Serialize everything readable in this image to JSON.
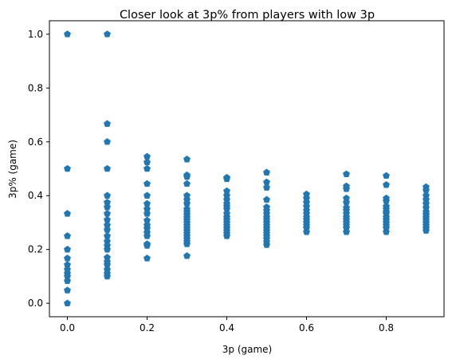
{
  "chart_data": {
    "type": "scatter",
    "title": "Closer look at 3p% from players with low 3p",
    "xlabel": "3p (game)",
    "ylabel": "3p% (game)",
    "xlim": [
      -0.045,
      0.945
    ],
    "ylim": [
      -0.05,
      1.05
    ],
    "x_ticks": [
      "0.0",
      "0.2",
      "0.4",
      "0.6",
      "0.8"
    ],
    "y_ticks": [
      "0.0",
      "0.2",
      "0.4",
      "0.6",
      "0.8",
      "1.0"
    ],
    "marker": "pentagon",
    "color": "#1f77b4",
    "grid": false,
    "series": [
      {
        "points": [
          [
            0.0,
            1.0
          ],
          [
            0.0,
            0.5
          ],
          [
            0.0,
            0.333
          ],
          [
            0.0,
            0.25
          ],
          [
            0.0,
            0.2
          ],
          [
            0.0,
            0.167
          ],
          [
            0.0,
            0.143
          ],
          [
            0.0,
            0.125
          ],
          [
            0.0,
            0.111
          ],
          [
            0.0,
            0.1
          ],
          [
            0.0,
            0.083
          ],
          [
            0.0,
            0.048
          ],
          [
            0.0,
            0.0
          ],
          [
            0.1,
            1.0
          ],
          [
            0.1,
            0.667
          ],
          [
            0.1,
            0.6
          ],
          [
            0.1,
            0.5
          ],
          [
            0.1,
            0.4
          ],
          [
            0.1,
            0.375
          ],
          [
            0.1,
            0.357
          ],
          [
            0.1,
            0.333
          ],
          [
            0.1,
            0.31
          ],
          [
            0.1,
            0.29
          ],
          [
            0.1,
            0.273
          ],
          [
            0.1,
            0.25
          ],
          [
            0.1,
            0.23
          ],
          [
            0.1,
            0.214
          ],
          [
            0.1,
            0.2
          ],
          [
            0.1,
            0.17
          ],
          [
            0.1,
            0.154
          ],
          [
            0.1,
            0.143
          ],
          [
            0.1,
            0.125
          ],
          [
            0.1,
            0.111
          ],
          [
            0.1,
            0.1
          ],
          [
            0.2,
            0.545
          ],
          [
            0.2,
            0.524
          ],
          [
            0.2,
            0.5
          ],
          [
            0.2,
            0.444
          ],
          [
            0.2,
            0.4
          ],
          [
            0.2,
            0.37
          ],
          [
            0.2,
            0.35
          ],
          [
            0.2,
            0.333
          ],
          [
            0.2,
            0.308
          ],
          [
            0.2,
            0.29
          ],
          [
            0.2,
            0.278
          ],
          [
            0.2,
            0.263
          ],
          [
            0.2,
            0.25
          ],
          [
            0.2,
            0.22
          ],
          [
            0.2,
            0.214
          ],
          [
            0.2,
            0.167
          ],
          [
            0.3,
            0.535
          ],
          [
            0.3,
            0.476
          ],
          [
            0.3,
            0.47
          ],
          [
            0.3,
            0.444
          ],
          [
            0.3,
            0.4
          ],
          [
            0.3,
            0.385
          ],
          [
            0.3,
            0.37
          ],
          [
            0.3,
            0.35
          ],
          [
            0.3,
            0.34
          ],
          [
            0.3,
            0.33
          ],
          [
            0.3,
            0.32
          ],
          [
            0.3,
            0.31
          ],
          [
            0.3,
            0.3
          ],
          [
            0.3,
            0.29
          ],
          [
            0.3,
            0.28
          ],
          [
            0.3,
            0.27
          ],
          [
            0.3,
            0.26
          ],
          [
            0.3,
            0.25
          ],
          [
            0.3,
            0.24
          ],
          [
            0.3,
            0.23
          ],
          [
            0.3,
            0.22
          ],
          [
            0.3,
            0.176
          ],
          [
            0.4,
            0.467
          ],
          [
            0.4,
            0.462
          ],
          [
            0.4,
            0.417
          ],
          [
            0.4,
            0.4
          ],
          [
            0.4,
            0.385
          ],
          [
            0.4,
            0.37
          ],
          [
            0.4,
            0.36
          ],
          [
            0.4,
            0.35
          ],
          [
            0.4,
            0.333
          ],
          [
            0.4,
            0.32
          ],
          [
            0.4,
            0.31
          ],
          [
            0.4,
            0.3
          ],
          [
            0.4,
            0.29
          ],
          [
            0.4,
            0.28
          ],
          [
            0.4,
            0.27
          ],
          [
            0.4,
            0.26
          ],
          [
            0.4,
            0.25
          ],
          [
            0.5,
            0.486
          ],
          [
            0.5,
            0.45
          ],
          [
            0.5,
            0.43
          ],
          [
            0.5,
            0.385
          ],
          [
            0.5,
            0.357
          ],
          [
            0.5,
            0.345
          ],
          [
            0.5,
            0.333
          ],
          [
            0.5,
            0.32
          ],
          [
            0.5,
            0.31
          ],
          [
            0.5,
            0.3
          ],
          [
            0.5,
            0.29
          ],
          [
            0.5,
            0.28
          ],
          [
            0.5,
            0.27
          ],
          [
            0.5,
            0.26
          ],
          [
            0.5,
            0.25
          ],
          [
            0.5,
            0.24
          ],
          [
            0.5,
            0.228
          ],
          [
            0.5,
            0.217
          ],
          [
            0.6,
            0.405
          ],
          [
            0.6,
            0.39
          ],
          [
            0.6,
            0.375
          ],
          [
            0.6,
            0.36
          ],
          [
            0.6,
            0.345
          ],
          [
            0.6,
            0.333
          ],
          [
            0.6,
            0.32
          ],
          [
            0.6,
            0.31
          ],
          [
            0.6,
            0.3
          ],
          [
            0.6,
            0.29
          ],
          [
            0.6,
            0.28
          ],
          [
            0.6,
            0.265
          ],
          [
            0.7,
            0.48
          ],
          [
            0.7,
            0.435
          ],
          [
            0.7,
            0.425
          ],
          [
            0.7,
            0.39
          ],
          [
            0.7,
            0.375
          ],
          [
            0.7,
            0.355
          ],
          [
            0.7,
            0.345
          ],
          [
            0.7,
            0.333
          ],
          [
            0.7,
            0.32
          ],
          [
            0.7,
            0.31
          ],
          [
            0.7,
            0.3
          ],
          [
            0.7,
            0.29
          ],
          [
            0.7,
            0.28
          ],
          [
            0.7,
            0.265
          ],
          [
            0.8,
            0.474
          ],
          [
            0.8,
            0.44
          ],
          [
            0.8,
            0.39
          ],
          [
            0.8,
            0.38
          ],
          [
            0.8,
            0.36
          ],
          [
            0.8,
            0.35
          ],
          [
            0.8,
            0.34
          ],
          [
            0.8,
            0.333
          ],
          [
            0.8,
            0.32
          ],
          [
            0.8,
            0.31
          ],
          [
            0.8,
            0.3
          ],
          [
            0.8,
            0.29
          ],
          [
            0.8,
            0.28
          ],
          [
            0.8,
            0.265
          ],
          [
            0.9,
            0.432
          ],
          [
            0.9,
            0.42
          ],
          [
            0.9,
            0.4
          ],
          [
            0.9,
            0.385
          ],
          [
            0.9,
            0.37
          ],
          [
            0.9,
            0.355
          ],
          [
            0.9,
            0.34
          ],
          [
            0.9,
            0.33
          ],
          [
            0.9,
            0.32
          ],
          [
            0.9,
            0.31
          ],
          [
            0.9,
            0.3
          ],
          [
            0.9,
            0.29
          ],
          [
            0.9,
            0.28
          ],
          [
            0.9,
            0.27
          ]
        ]
      }
    ]
  }
}
